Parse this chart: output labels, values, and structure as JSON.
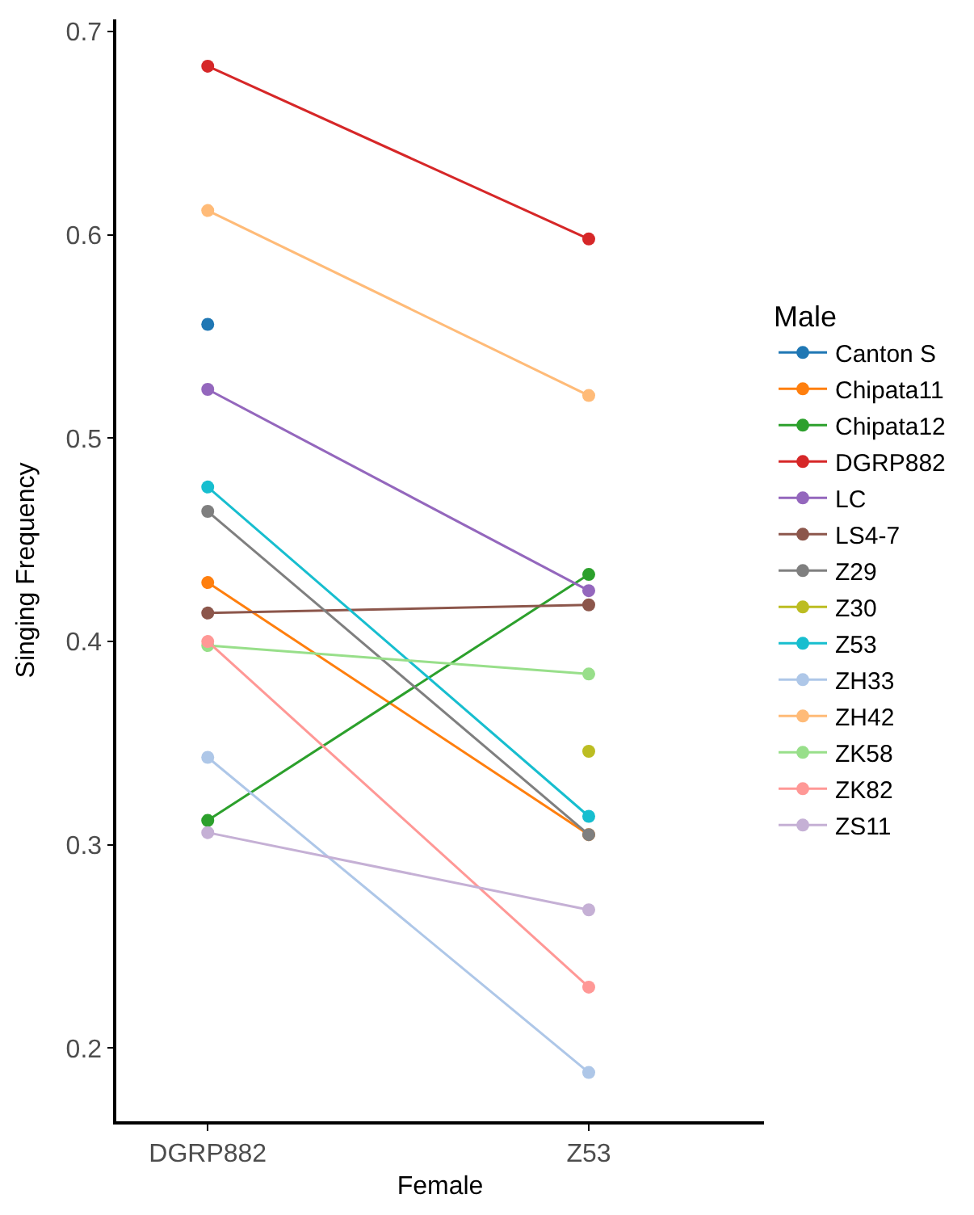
{
  "chart_data": {
    "type": "line",
    "xlabel": "Female",
    "ylabel": "Singing Frequency",
    "legend_title": "Male",
    "categories": [
      "DGRP882",
      "Z53"
    ],
    "ylim": [
      0.164,
      0.706
    ],
    "yticks": [
      0.2,
      0.3,
      0.4,
      0.5,
      0.6,
      0.7
    ],
    "legend": "right",
    "marker": "circle",
    "line_style": "solid",
    "series": [
      {
        "name": "Canton S",
        "color": "#1f77b4",
        "values": [
          0.556,
          null
        ]
      },
      {
        "name": "Chipata11",
        "color": "#ff7f0e",
        "values": [
          0.429,
          0.305
        ]
      },
      {
        "name": "Chipata12",
        "color": "#2ca02c",
        "values": [
          0.312,
          0.433
        ]
      },
      {
        "name": "DGRP882",
        "color": "#d62728",
        "values": [
          0.683,
          0.598
        ]
      },
      {
        "name": "LC",
        "color": "#9467bd",
        "values": [
          0.524,
          0.425
        ]
      },
      {
        "name": "LS4-7",
        "color": "#8c564b",
        "values": [
          0.414,
          0.418
        ]
      },
      {
        "name": "Z29",
        "color": "#7f7f7f",
        "values": [
          0.464,
          0.305
        ]
      },
      {
        "name": "Z30",
        "color": "#bcbd22",
        "values": [
          null,
          0.346
        ]
      },
      {
        "name": "Z53",
        "color": "#17becf",
        "values": [
          0.476,
          0.314
        ]
      },
      {
        "name": "ZH33",
        "color": "#aec7e8",
        "values": [
          0.343,
          0.188
        ]
      },
      {
        "name": "ZH42",
        "color": "#ffbb78",
        "values": [
          0.612,
          0.521
        ]
      },
      {
        "name": "ZK58",
        "color": "#98df8a",
        "values": [
          0.398,
          0.384
        ]
      },
      {
        "name": "ZK82",
        "color": "#ff9896",
        "values": [
          0.4,
          0.23
        ]
      },
      {
        "name": "ZS11",
        "color": "#c5b0d5",
        "values": [
          0.306,
          0.268
        ]
      }
    ]
  }
}
